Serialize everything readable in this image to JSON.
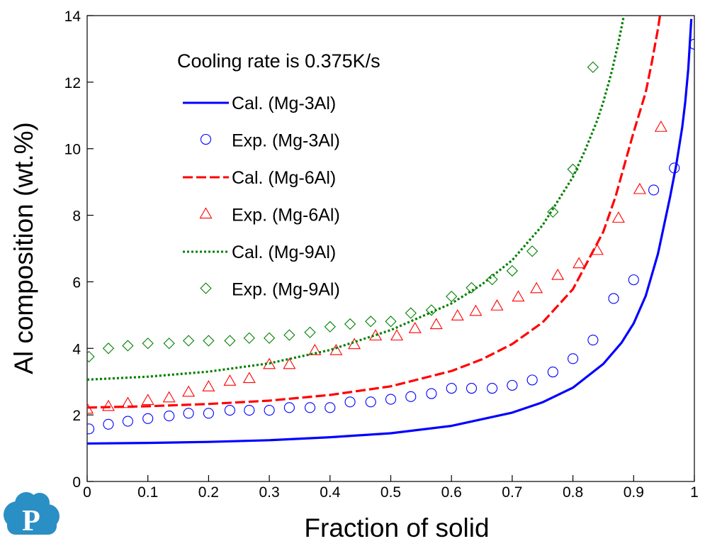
{
  "chart_data": {
    "type": "line",
    "title": "",
    "annotation": "Cooling rate is 0.375K/s",
    "xlabel": "Fraction of solid",
    "ylabel": "Al composition (wt.%)",
    "xlim": [
      0,
      1
    ],
    "ylim": [
      0,
      14
    ],
    "x_ticks": [
      "0",
      "0.1",
      "0.2",
      "0.3",
      "0.4",
      "0.5",
      "0.6",
      "0.7",
      "0.8",
      "0.9",
      "1"
    ],
    "y_ticks": [
      "0",
      "2",
      "4",
      "6",
      "8",
      "10",
      "12",
      "14"
    ],
    "grid": false,
    "legend_position": "top-left",
    "series": [
      {
        "name": "Cal. (Mg-3Al)",
        "kind": "line",
        "style": "solid",
        "color": "#0000ff",
        "x": [
          0.0,
          0.1,
          0.2,
          0.3,
          0.4,
          0.5,
          0.6,
          0.7,
          0.75,
          0.8,
          0.85,
          0.88,
          0.9,
          0.92,
          0.94,
          0.96,
          0.97,
          0.98,
          0.985,
          0.99,
          0.995
        ],
        "y": [
          1.14,
          1.16,
          1.19,
          1.24,
          1.33,
          1.45,
          1.67,
          2.07,
          2.38,
          2.82,
          3.53,
          4.17,
          4.75,
          5.58,
          6.84,
          8.55,
          9.5,
          10.65,
          11.4,
          12.4,
          13.9
        ]
      },
      {
        "name": "Exp. (Mg-3Al)",
        "kind": "scatter",
        "marker": "circle",
        "color": "#0000ff",
        "x": [
          0.003,
          0.035,
          0.067,
          0.1,
          0.135,
          0.167,
          0.2,
          0.235,
          0.267,
          0.3,
          0.333,
          0.367,
          0.4,
          0.433,
          0.467,
          0.5,
          0.533,
          0.567,
          0.6,
          0.633,
          0.667,
          0.7,
          0.733,
          0.767,
          0.8,
          0.833,
          0.867,
          0.9,
          0.933,
          0.967,
          1.0
        ],
        "y": [
          1.58,
          1.72,
          1.81,
          1.89,
          1.97,
          2.05,
          2.05,
          2.14,
          2.14,
          2.14,
          2.22,
          2.22,
          2.22,
          2.39,
          2.39,
          2.47,
          2.55,
          2.64,
          2.8,
          2.8,
          2.8,
          2.89,
          3.05,
          3.29,
          3.69,
          4.25,
          5.5,
          6.06,
          8.76,
          9.42,
          13.14
        ]
      },
      {
        "name": "Cal. (Mg-6Al)",
        "kind": "line",
        "style": "dashed",
        "color": "#ff0000",
        "x": [
          0.0,
          0.1,
          0.2,
          0.3,
          0.4,
          0.5,
          0.6,
          0.65,
          0.7,
          0.75,
          0.8,
          0.85,
          0.87,
          0.89,
          0.9,
          0.91,
          0.92,
          0.93,
          0.935,
          0.94,
          0.945
        ],
        "y": [
          2.22,
          2.26,
          2.33,
          2.43,
          2.6,
          2.86,
          3.32,
          3.67,
          4.13,
          4.78,
          5.78,
          7.5,
          8.55,
          9.85,
          10.5,
          11.1,
          11.7,
          12.6,
          13.1,
          13.6,
          14.2
        ]
      },
      {
        "name": "Exp. (Mg-6Al)",
        "kind": "scatter",
        "marker": "triangle",
        "color": "#ff0000",
        "x": [
          0.0,
          0.035,
          0.067,
          0.1,
          0.135,
          0.167,
          0.2,
          0.235,
          0.267,
          0.3,
          0.333,
          0.375,
          0.41,
          0.44,
          0.475,
          0.51,
          0.54,
          0.575,
          0.61,
          0.64,
          0.675,
          0.71,
          0.74,
          0.775,
          0.81,
          0.84,
          0.875,
          0.91,
          0.945
        ],
        "y": [
          2.18,
          2.26,
          2.35,
          2.44,
          2.52,
          2.69,
          2.85,
          3.02,
          3.1,
          3.52,
          3.52,
          3.94,
          3.94,
          4.12,
          4.38,
          4.38,
          4.6,
          4.72,
          4.98,
          5.12,
          5.28,
          5.55,
          5.8,
          6.2,
          6.55,
          6.95,
          7.92,
          8.78,
          10.65
        ]
      },
      {
        "name": "Cal. (Mg-9Al)",
        "kind": "line",
        "style": "dotted",
        "color": "#008000",
        "x": [
          0.0,
          0.1,
          0.2,
          0.3,
          0.4,
          0.5,
          0.6,
          0.65,
          0.7,
          0.75,
          0.8,
          0.82,
          0.84,
          0.85,
          0.86,
          0.865,
          0.87,
          0.875,
          0.88,
          0.885
        ],
        "y": [
          3.06,
          3.15,
          3.3,
          3.55,
          3.95,
          4.55,
          5.35,
          5.92,
          6.65,
          7.7,
          9.15,
          9.95,
          10.85,
          11.4,
          12.05,
          12.4,
          12.8,
          13.2,
          13.65,
          14.1
        ]
      },
      {
        "name": "Exp. (Mg-9Al)",
        "kind": "scatter",
        "marker": "diamond",
        "color": "#008000",
        "x": [
          0.003,
          0.035,
          0.067,
          0.1,
          0.135,
          0.167,
          0.2,
          0.235,
          0.267,
          0.3,
          0.333,
          0.367,
          0.4,
          0.433,
          0.467,
          0.5,
          0.533,
          0.567,
          0.6,
          0.633,
          0.667,
          0.7,
          0.733,
          0.767,
          0.8,
          0.833
        ],
        "y": [
          3.75,
          4.0,
          4.08,
          4.15,
          4.15,
          4.23,
          4.23,
          4.23,
          4.31,
          4.31,
          4.4,
          4.48,
          4.65,
          4.73,
          4.81,
          4.81,
          5.06,
          5.15,
          5.56,
          5.82,
          6.07,
          6.33,
          6.92,
          8.1,
          9.38,
          12.45
        ]
      }
    ]
  }
}
